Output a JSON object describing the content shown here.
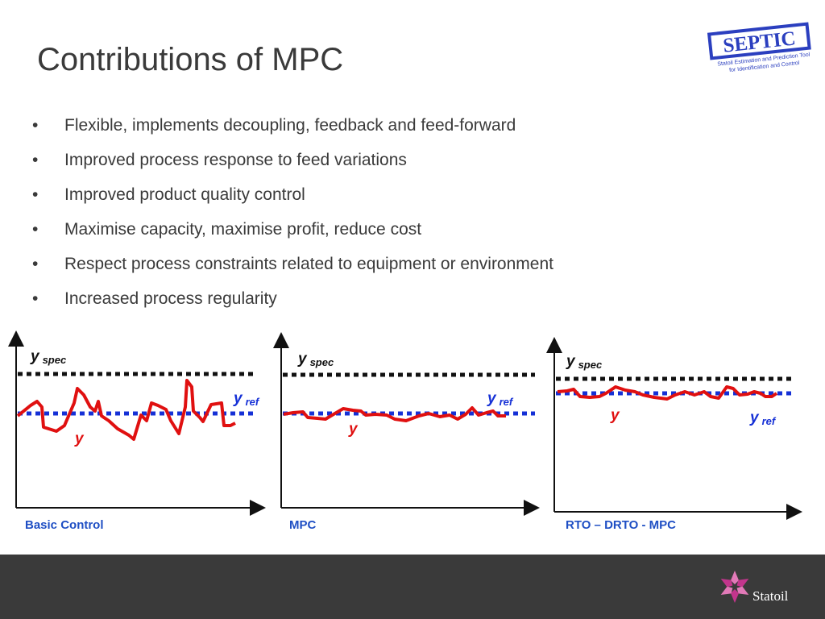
{
  "title": "Contributions of MPC",
  "bullet_char": "•",
  "bullets": [
    "Flexible, implements decoupling, feedback and feed-forward",
    "Improved process response to feed variations",
    "Improved product quality control",
    "Maximise capacity, maximise profit, reduce cost",
    "Respect process constraints related to equipment or environment",
    "Increased process regularity"
  ],
  "labels": {
    "y": "y",
    "spec": "spec",
    "ref": "ref"
  },
  "panels": [
    {
      "caption": "Basic Control"
    },
    {
      "caption": "MPC"
    },
    {
      "caption": "RTO – DRTO - MPC"
    }
  ],
  "logo": {
    "name": "SEPTIC",
    "tagline_1": "Statoil Estimation and Prediction Tool",
    "tagline_2": "for Identification and Control"
  },
  "footer": {
    "brand": "Statoil"
  },
  "colors": {
    "spec_line": "#111111",
    "ref_line": "#1530d6",
    "y_line": "#e01010",
    "caption": "#1f4fc4",
    "footer_bg": "#3a3a3a",
    "logo_blue": "#2b3fbf",
    "star_pink": "#d14a9a"
  }
}
